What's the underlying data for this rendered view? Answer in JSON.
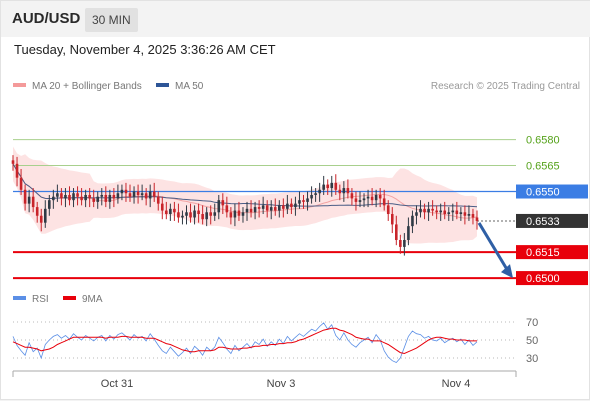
{
  "header": {
    "symbol": "AUD/USD",
    "timeframe": "30 MIN",
    "datetime": "Tuesday, November 4, 2025 3:36:26 AM CET"
  },
  "legend": {
    "ma20_bollinger": "MA 20 + Bollinger Bands",
    "ma50": "MA 50",
    "copyright": "Research © 2025 Trading Central"
  },
  "rsi_legend": {
    "rsi": "RSI",
    "ma9": "9MA"
  },
  "colors": {
    "candle_up": "#2f3a45",
    "candle_down": "#c8242a",
    "ma20": "#f2a3a3",
    "bollinger_fill": "#fde3e3",
    "ma50": "#4a5d86",
    "support": "#e8000b",
    "current": "#3b7de4",
    "resistance": "#a8d08d",
    "resistance_text": "#55a21a",
    "rsi": "#5b8fe6",
    "rsi_ma": "#e8000b",
    "arrow": "#2f5fa5"
  },
  "chart_data": [
    {
      "type": "candlestick",
      "symbol": "AUD/USD",
      "interval": "30 MIN",
      "x_labels": [
        "Oct 31",
        "Nov 3",
        "Nov 4"
      ],
      "ylim": [
        0.6496,
        0.6589
      ],
      "last_price": 0.6533,
      "levels": [
        {
          "value": 0.658,
          "label": "0.6580",
          "kind": "resistance"
        },
        {
          "value": 0.6565,
          "label": "0.6565",
          "kind": "resistance"
        },
        {
          "value": 0.655,
          "label": "0.6550",
          "kind": "current"
        },
        {
          "value": 0.6533,
          "label": "0.6533",
          "kind": "last"
        },
        {
          "value": 0.6515,
          "label": "0.6515",
          "kind": "support"
        },
        {
          "value": 0.65,
          "label": "0.6500",
          "kind": "support"
        }
      ],
      "close": [
        0.6566,
        0.6558,
        0.6551,
        0.6543,
        0.6547,
        0.6541,
        0.6536,
        0.6532,
        0.654,
        0.6545,
        0.6547,
        0.6549,
        0.6546,
        0.6548,
        0.6545,
        0.6549,
        0.6547,
        0.6545,
        0.6548,
        0.6546,
        0.6544,
        0.6547,
        0.6548,
        0.6544,
        0.6548,
        0.6546,
        0.6549,
        0.6551,
        0.6549,
        0.6547,
        0.655,
        0.6548,
        0.6549,
        0.6546,
        0.655,
        0.6547,
        0.6543,
        0.6539,
        0.6537,
        0.654,
        0.6538,
        0.6535,
        0.6536,
        0.6538,
        0.6535,
        0.6539,
        0.6537,
        0.6534,
        0.6538,
        0.6536,
        0.6538,
        0.6545,
        0.6542,
        0.6538,
        0.6535,
        0.6539,
        0.6536,
        0.6538,
        0.654,
        0.6538,
        0.6541,
        0.654,
        0.6542,
        0.6539,
        0.6541,
        0.6539,
        0.6542,
        0.654,
        0.6543,
        0.6541,
        0.6543,
        0.6545,
        0.6544,
        0.6546,
        0.6548,
        0.6549,
        0.6551,
        0.6554,
        0.6552,
        0.6555,
        0.6551,
        0.6549,
        0.6552,
        0.6549,
        0.6546,
        0.6544,
        0.6545,
        0.6546,
        0.6547,
        0.6545,
        0.6548,
        0.6546,
        0.6542,
        0.6537,
        0.6531,
        0.6522,
        0.6518,
        0.6522,
        0.653,
        0.6536,
        0.6538,
        0.654,
        0.6538,
        0.654,
        0.6539,
        0.6538,
        0.6539,
        0.6537,
        0.6538,
        0.6539,
        0.6537,
        0.6538,
        0.6536,
        0.6537,
        0.6535,
        0.6533
      ]
    },
    {
      "type": "line",
      "name": "RSI",
      "yticks": [
        70,
        50,
        30
      ],
      "ylim": [
        20,
        80
      ],
      "series": [
        {
          "name": "RSI",
          "values": [
            54,
            44,
            38,
            33,
            47,
            37,
            41,
            30,
            45,
            50,
            54,
            56,
            52,
            55,
            51,
            57,
            53,
            50,
            55,
            52,
            49,
            53,
            55,
            49,
            55,
            51,
            56,
            58,
            54,
            50,
            56,
            52,
            54,
            49,
            57,
            51,
            44,
            38,
            35,
            42,
            37,
            32,
            36,
            41,
            35,
            43,
            39,
            33,
            42,
            38,
            42,
            53,
            47,
            40,
            35,
            44,
            38,
            42,
            46,
            41,
            48,
            45,
            51,
            43,
            48,
            44,
            51,
            46,
            54,
            49,
            53,
            57,
            54,
            58,
            62,
            60,
            65,
            69,
            62,
            67,
            55,
            50,
            58,
            50,
            45,
            42,
            47,
            50,
            53,
            47,
            56,
            50,
            38,
            31,
            27,
            25,
            30,
            42,
            54,
            60,
            57,
            56,
            52,
            54,
            50,
            49,
            52,
            47,
            50,
            52,
            48,
            51,
            45,
            50,
            44,
            48
          ]
        },
        {
          "name": "9MA",
          "values": [
            48,
            46,
            44,
            42,
            42,
            41,
            40,
            38,
            39,
            40,
            42,
            45,
            47,
            49,
            51,
            53,
            53,
            53,
            53,
            53,
            53,
            53,
            53,
            52,
            53,
            53,
            53,
            54,
            54,
            53,
            53,
            53,
            53,
            52,
            52,
            52,
            50,
            48,
            46,
            45,
            43,
            41,
            39,
            38,
            37,
            37,
            38,
            38,
            38,
            38,
            39,
            42,
            42,
            41,
            40,
            40,
            40,
            41,
            41,
            42,
            43,
            43,
            44,
            44,
            45,
            45,
            46,
            46,
            47,
            47,
            48,
            50,
            51,
            53,
            55,
            57,
            59,
            61,
            62,
            63,
            63,
            61,
            60,
            58,
            56,
            53,
            52,
            51,
            51,
            49,
            49,
            49,
            47,
            45,
            42,
            39,
            36,
            35,
            37,
            39,
            41,
            44,
            47,
            50,
            52,
            53,
            53,
            52,
            51,
            51,
            50,
            50,
            50,
            49,
            49,
            49
          ]
        }
      ]
    }
  ]
}
